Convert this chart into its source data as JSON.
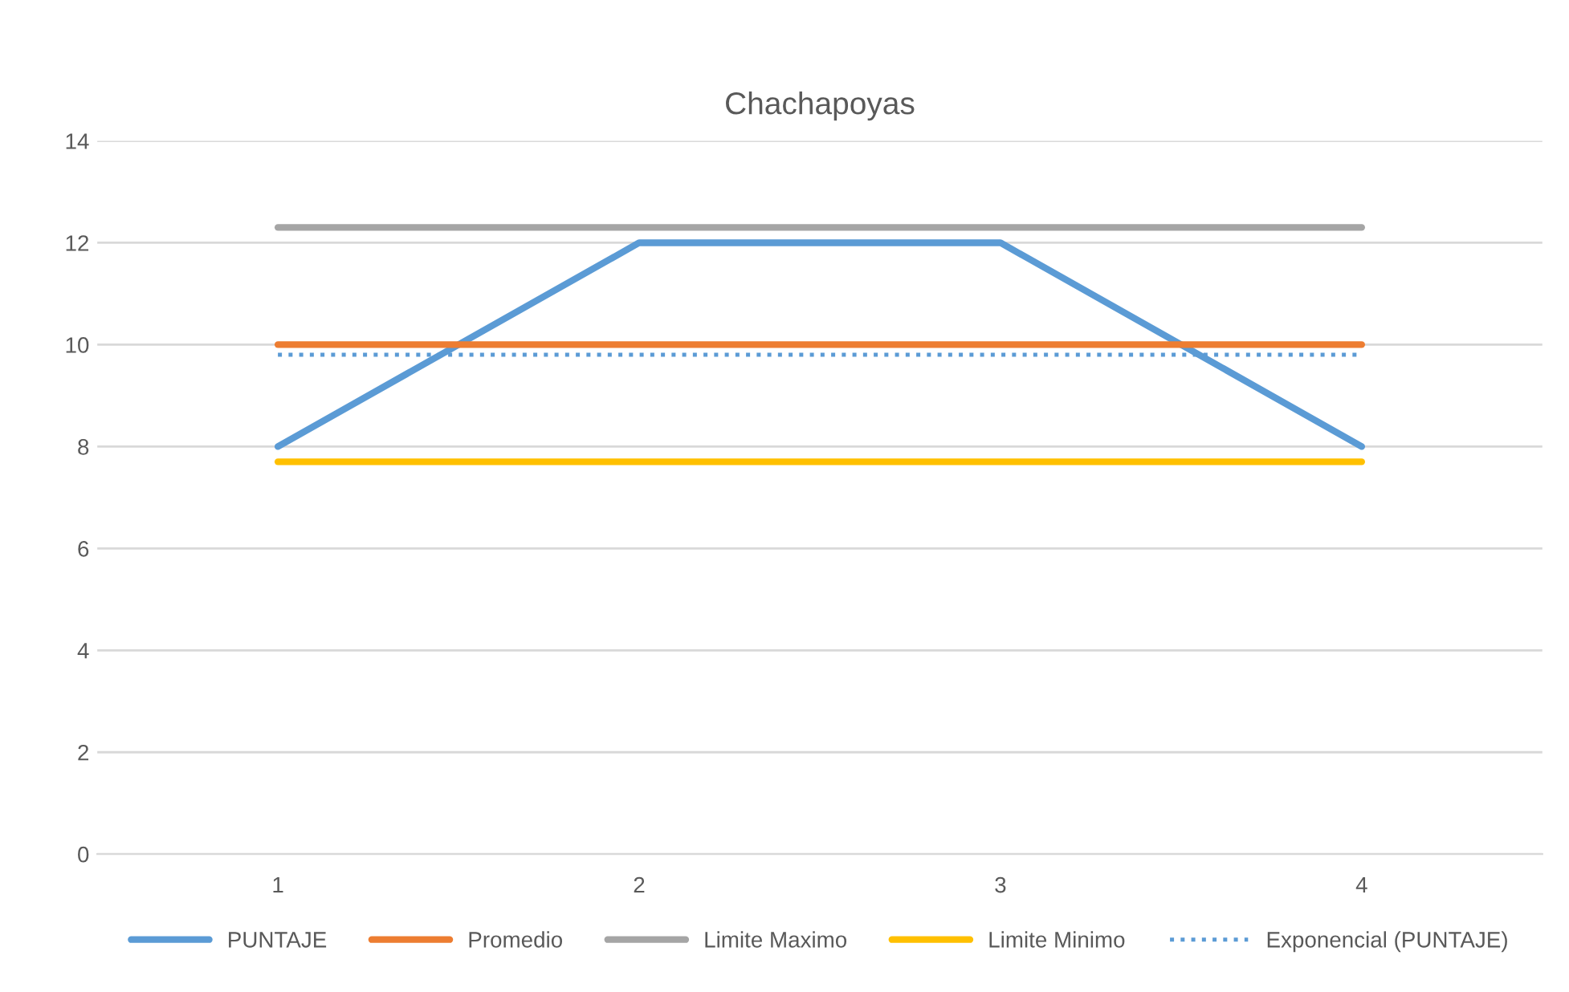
{
  "chart_data": {
    "type": "line",
    "title": "Chachapoyas",
    "categories": [
      "1",
      "2",
      "3",
      "4"
    ],
    "series": [
      {
        "name": "PUNTAJE",
        "color": "#5b9bd5",
        "values": [
          8,
          12,
          12,
          8
        ]
      },
      {
        "name": "Promedio",
        "color": "#ed7d31",
        "values": [
          10,
          10,
          10,
          10
        ]
      },
      {
        "name": "Limite Maximo",
        "color": "#a5a5a5",
        "values": [
          12.3,
          12.3,
          12.3,
          12.3
        ]
      },
      {
        "name": "Limite Minimo",
        "color": "#ffc000",
        "values": [
          7.7,
          7.7,
          7.7,
          7.7
        ]
      },
      {
        "name": "Exponencial (PUNTAJE)",
        "color": "#5b9bd5",
        "values": [
          9.8,
          9.8,
          9.8,
          9.8
        ],
        "line_style": "dotted"
      }
    ],
    "ylim": [
      0,
      14
    ],
    "yticks": [
      0,
      2,
      4,
      6,
      8,
      10,
      12,
      14
    ],
    "grid": "y",
    "legend": "bottom",
    "marker": "none",
    "line_style": "solid"
  }
}
